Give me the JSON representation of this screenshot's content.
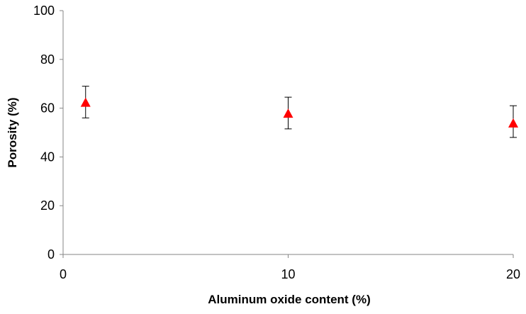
{
  "chart_data": {
    "type": "scatter",
    "title": "",
    "xlabel": "Aluminum oxide content (%)",
    "ylabel": "Porosity (%)",
    "xlim": [
      0,
      20
    ],
    "ylim": [
      0,
      100
    ],
    "x_ticks": [
      "0",
      "10",
      "20"
    ],
    "y_ticks": [
      "0",
      "20",
      "40",
      "60",
      "80",
      "100"
    ],
    "grid": false,
    "legend": "none",
    "series": [
      {
        "marker": "triangle",
        "color": "#ff0000",
        "x": [
          1,
          10,
          20
        ],
        "y": [
          62,
          57.5,
          53.5
        ],
        "error_upper": [
          69,
          64.5,
          61
        ],
        "error_lower": [
          56,
          51.5,
          48
        ]
      }
    ]
  }
}
